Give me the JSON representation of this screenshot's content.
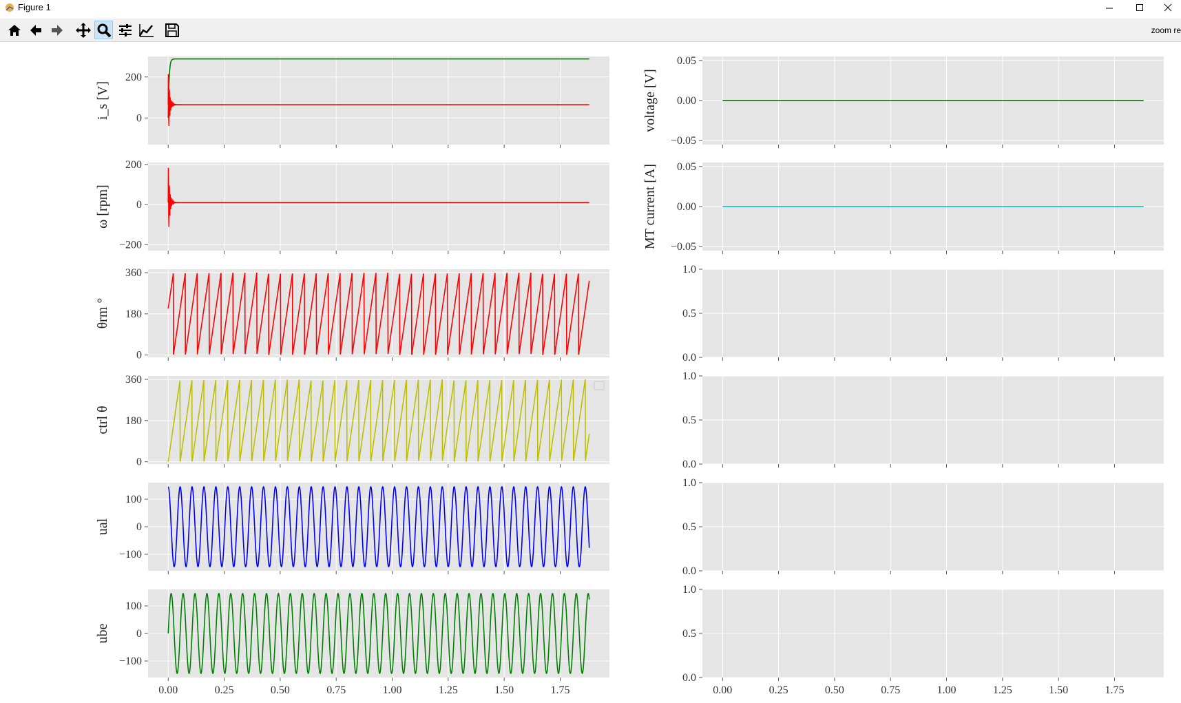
{
  "window": {
    "title": "Figure 1"
  },
  "toolbar": {
    "buttons": [
      {
        "name": "home-icon",
        "label": "Home"
      },
      {
        "name": "back-icon",
        "label": "Back"
      },
      {
        "name": "forward-icon",
        "label": "Forward"
      },
      {
        "name": "pan-icon",
        "label": "Pan"
      },
      {
        "name": "zoom-icon",
        "label": "Zoom",
        "active": true
      },
      {
        "name": "subplots-icon",
        "label": "Subplots"
      },
      {
        "name": "customize-icon",
        "label": "Customize"
      },
      {
        "name": "save-icon",
        "label": "Save"
      }
    ],
    "status_text": "zoom re"
  },
  "colors": {
    "axes_bg": "#e5e5e5",
    "grid": "#ffffff",
    "green": "#008000",
    "red": "#ff0000",
    "yellow": "#bfbf00",
    "blue": "#0000ff",
    "cyan": "#00bfbf",
    "darkgreen": "#006400"
  },
  "chart_data": [
    {
      "type": "line",
      "ylabel": "i_s [V]",
      "ylim": [
        -130,
        300
      ],
      "yticks": [
        "0",
        "200"
      ],
      "ytick_values": [
        0,
        200
      ],
      "xlim": [
        -0.09,
        1.97
      ],
      "series": [
        {
          "color": "green",
          "shape": "step_settle",
          "start": 0,
          "level": 288
        },
        {
          "color": "red",
          "shape": "damped",
          "start": 0,
          "level": 65,
          "amp": 180
        }
      ]
    },
    {
      "type": "line",
      "ylabel": "ω [rpm]",
      "ylim": [
        -230,
        210
      ],
      "yticks": [
        "−200",
        "0",
        "200"
      ],
      "ytick_values": [
        -200,
        0,
        200
      ],
      "xlim": [
        -0.09,
        1.97
      ],
      "series": [
        {
          "color": "red",
          "shape": "damped",
          "start": 0,
          "level": 10,
          "amp": 210
        }
      ]
    },
    {
      "type": "line",
      "ylabel": "θrm °",
      "ylim": [
        -10,
        375
      ],
      "yticks": [
        "0",
        "180",
        "360"
      ],
      "ytick_values": [
        0,
        180,
        360
      ],
      "xlim": [
        -0.09,
        1.97
      ],
      "series": [
        {
          "color": "red",
          "shape": "sawtooth",
          "period": 0.0532,
          "phase": 0.0,
          "offset": 0.03
        }
      ]
    },
    {
      "type": "line",
      "ylabel": "ctrl θ",
      "ylim": [
        -10,
        375
      ],
      "yticks": [
        "0",
        "180",
        "360"
      ],
      "ytick_values": [
        0,
        180,
        360
      ],
      "xlim": [
        -0.09,
        1.97
      ],
      "legend": "top-right",
      "series": [
        {
          "color": "yellow",
          "shape": "sawtooth",
          "period": 0.0532,
          "phase": 0.0,
          "offset": 0
        }
      ]
    },
    {
      "type": "line",
      "ylabel": "ual",
      "ylim": [
        -160,
        160
      ],
      "yticks": [
        "−100",
        "0",
        "100"
      ],
      "ytick_values": [
        -100,
        0,
        100
      ],
      "xlim": [
        -0.09,
        1.97
      ],
      "series": [
        {
          "color": "blue",
          "shape": "cosine",
          "amp": 145,
          "period": 0.0532
        }
      ]
    },
    {
      "type": "line",
      "ylabel": "ube",
      "ylim": [
        -160,
        160
      ],
      "yticks": [
        "−100",
        "0",
        "100"
      ],
      "ytick_values": [
        -100,
        0,
        100
      ],
      "xlim": [
        -0.09,
        1.97
      ],
      "xticks": [
        "0.00",
        "0.25",
        "0.50",
        "0.75",
        "1.00",
        "1.25",
        "1.50",
        "1.75"
      ],
      "xtick_values": [
        0,
        0.25,
        0.5,
        0.75,
        1.0,
        1.25,
        1.5,
        1.75
      ],
      "series": [
        {
          "color": "green",
          "shape": "sine",
          "amp": 145,
          "period": 0.0532
        }
      ]
    },
    {
      "type": "line",
      "ylabel": "voltage [V]",
      "ylim": [
        -0.055,
        0.055
      ],
      "yticks": [
        "−0.05",
        "0.00",
        "0.05"
      ],
      "ytick_values": [
        -0.05,
        0,
        0.05
      ],
      "xlim": [
        -0.09,
        1.97
      ],
      "series": [
        {
          "color": "darkgreen",
          "shape": "constant",
          "level": 0
        }
      ]
    },
    {
      "type": "line",
      "ylabel": "MT current [A]",
      "ylim": [
        -0.055,
        0.055
      ],
      "yticks": [
        "−0.05",
        "0.00",
        "0.05"
      ],
      "ytick_values": [
        -0.05,
        0,
        0.05
      ],
      "xlim": [
        -0.09,
        1.97
      ],
      "series": [
        {
          "color": "cyan",
          "shape": "constant",
          "level": 0
        }
      ]
    },
    {
      "type": "line",
      "ylabel": "",
      "ylim": [
        0,
        1
      ],
      "yticks": [
        "0.0",
        "0.5",
        "1.0"
      ],
      "ytick_values": [
        0,
        0.5,
        1
      ],
      "xlim": [
        -0.09,
        1.97
      ],
      "series": []
    },
    {
      "type": "line",
      "ylabel": "",
      "ylim": [
        0,
        1
      ],
      "yticks": [
        "0.0",
        "0.5",
        "1.0"
      ],
      "ytick_values": [
        0,
        0.5,
        1
      ],
      "xlim": [
        -0.09,
        1.97
      ],
      "series": []
    },
    {
      "type": "line",
      "ylabel": "",
      "ylim": [
        0,
        1
      ],
      "yticks": [
        "0.0",
        "0.5",
        "1.0"
      ],
      "ytick_values": [
        0,
        0.5,
        1
      ],
      "xlim": [
        -0.09,
        1.97
      ],
      "series": []
    },
    {
      "type": "line",
      "ylabel": "",
      "ylim": [
        0,
        1
      ],
      "yticks": [
        "0.0",
        "0.5",
        "1.0"
      ],
      "ytick_values": [
        0,
        0.5,
        1
      ],
      "xlim": [
        -0.09,
        1.97
      ],
      "xticks": [
        "0.00",
        "0.25",
        "0.50",
        "0.75",
        "1.00",
        "1.25",
        "1.50",
        "1.75"
      ],
      "xtick_values": [
        0,
        0.25,
        0.5,
        0.75,
        1.0,
        1.25,
        1.5,
        1.75
      ],
      "series": []
    }
  ]
}
